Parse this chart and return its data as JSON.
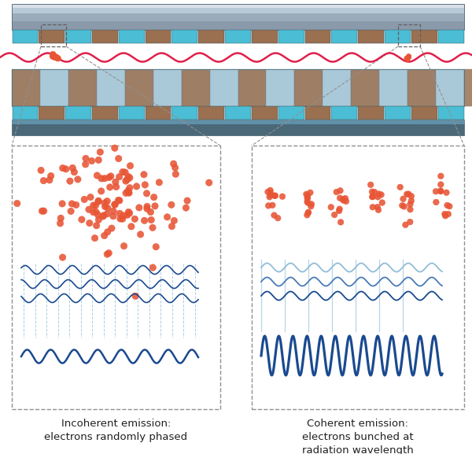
{
  "bg_color": "#ffffff",
  "magnet_cyan": "#4bbdd4",
  "magnet_brown": "#9a7050",
  "top_plate_face": "#8a9aaa",
  "top_plate_shine": "#c5cfd8",
  "top_plate_dark": "#6a7a8a",
  "lower_face_light": "#a8c8d8",
  "lower_face_tan": "#c8b898",
  "lower_side": "#5a7080",
  "lower_bottom": "#4a6070",
  "wave_dark": "#1a4a90",
  "wave_mid": "#4a7ab8",
  "wave_light": "#90bcd8",
  "electron_fill": "#e85535",
  "electron_edge": "#c03020",
  "beam_color": "#e0204a",
  "panel_edge": "#909090",
  "label_left": "Incoherent emission:\nelectrons randomly phased",
  "label_right": "Coherent emission:\nelectrons bunched at\nradiation wavelength",
  "label_fontsize": 9.5
}
